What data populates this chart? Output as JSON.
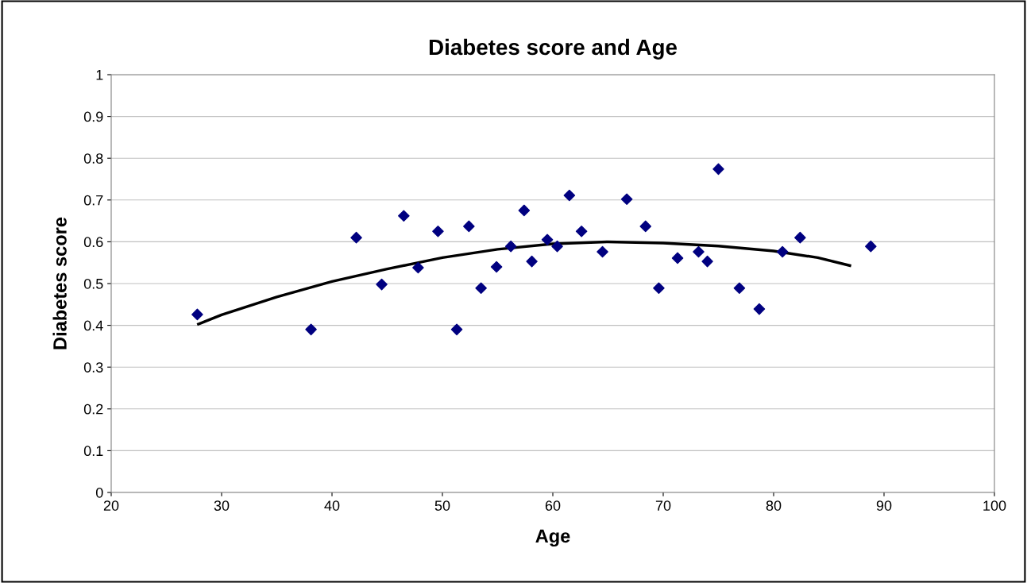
{
  "chart_data": {
    "type": "scatter",
    "title": "Diabetes score and Age",
    "xlabel": "Age",
    "ylabel": "Diabetes score",
    "xlim": [
      20,
      100
    ],
    "xticks": [
      20,
      30,
      40,
      50,
      60,
      70,
      80,
      90,
      100
    ],
    "ylim": [
      0,
      1
    ],
    "yticks": [
      0,
      0.1,
      0.2,
      0.3,
      0.4,
      0.5,
      0.6,
      0.7,
      0.8,
      0.9,
      1
    ],
    "grid": "y",
    "legend": false,
    "series": [
      {
        "marker": "diamond",
        "color": "#000080",
        "x": [
          27.8,
          38.1,
          42.2,
          44.5,
          46.5,
          47.8,
          49.6,
          51.3,
          52.4,
          53.5,
          54.9,
          56.2,
          57.4,
          58.1,
          59.5,
          60.4,
          61.5,
          62.6,
          64.5,
          66.7,
          68.4,
          69.6,
          71.3,
          73.2,
          74.0,
          75.0,
          76.9,
          78.7,
          80.8,
          82.4,
          88.8
        ],
        "values": [
          0.426,
          0.39,
          0.61,
          0.498,
          0.662,
          0.538,
          0.625,
          0.39,
          0.637,
          0.489,
          0.54,
          0.589,
          0.675,
          0.553,
          0.605,
          0.589,
          0.711,
          0.625,
          0.576,
          0.702,
          0.637,
          0.489,
          0.561,
          0.576,
          0.553,
          0.774,
          0.489,
          0.439,
          0.576,
          0.61,
          0.589
        ]
      },
      {
        "type": "line",
        "marker": "none",
        "color": "#000000",
        "x": [
          27.9,
          30,
          35,
          40,
          45,
          50,
          55,
          60,
          65,
          70,
          75,
          80,
          84,
          86.9
        ],
        "values": [
          0.403,
          0.425,
          0.468,
          0.505,
          0.535,
          0.562,
          0.582,
          0.595,
          0.6,
          0.597,
          0.59,
          0.578,
          0.562,
          0.543
        ]
      }
    ]
  }
}
